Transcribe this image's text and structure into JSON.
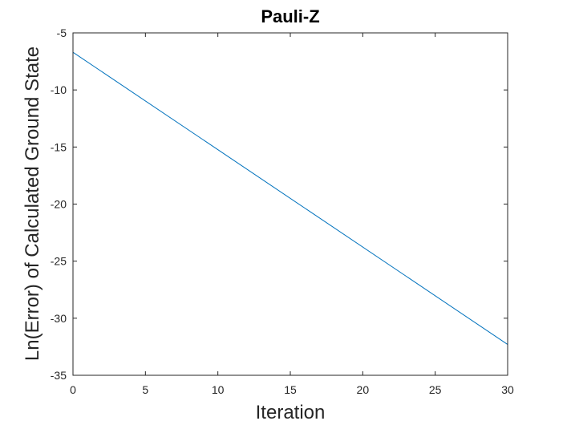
{
  "chart_data": {
    "type": "line",
    "title": "Pauli-Z",
    "xlabel": "Iteration",
    "ylabel": "Ln(Error) of Calculated Ground State",
    "xlim": [
      0,
      30
    ],
    "ylim": [
      -35,
      -5
    ],
    "xticks": [
      0,
      5,
      10,
      15,
      20,
      25,
      30
    ],
    "yticks": [
      -5,
      -10,
      -15,
      -20,
      -25,
      -30,
      -35
    ],
    "grid": false,
    "series": [
      {
        "color": "#0072bd",
        "x": [
          0,
          30
        ],
        "y": [
          -6.7,
          -32.3
        ]
      }
    ]
  }
}
